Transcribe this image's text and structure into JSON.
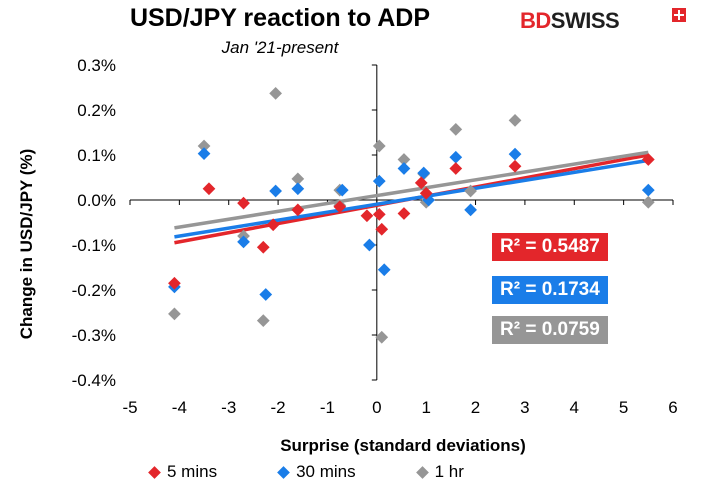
{
  "colors": {
    "s5": "#e3262b",
    "s30": "#1a7de8",
    "s1h": "#969696",
    "logo_red": "#e3262b"
  },
  "logo": {
    "bd": "BD",
    "swiss": "SWISS"
  },
  "chart_data": {
    "type": "scatter",
    "title": "USD/JPY reaction to ADP",
    "subtitle": "Jan '21-present",
    "xlabel": "Surprise (standard deviations)",
    "ylabel": "Change in USD/JPY  (%)",
    "xlim": [
      -5,
      6
    ],
    "ylim": [
      -0.4,
      0.3
    ],
    "x_ticks": [
      "-5",
      "-4",
      "-3",
      "-2",
      "-1",
      "0",
      "1",
      "2",
      "3",
      "4",
      "5",
      "6"
    ],
    "y_ticks": [
      "0.3%",
      "0.2%",
      "0.1%",
      "0.0%",
      "-0.1%",
      "-0.2%",
      "-0.3%",
      "-0.4%"
    ],
    "legend_position": "bottom",
    "series": [
      {
        "name": "5 mins",
        "color": "#e3262b",
        "points": [
          [
            -4.1,
            -0.185
          ],
          [
            -3.4,
            0.025
          ],
          [
            -2.7,
            -0.007
          ],
          [
            -2.3,
            -0.105
          ],
          [
            -2.1,
            -0.055
          ],
          [
            -1.6,
            -0.022
          ],
          [
            -0.75,
            -0.015
          ],
          [
            -0.2,
            -0.035
          ],
          [
            0.05,
            -0.032
          ],
          [
            0.1,
            -0.065
          ],
          [
            0.55,
            -0.03
          ],
          [
            0.9,
            0.038
          ],
          [
            1.0,
            0.015
          ],
          [
            1.6,
            0.07
          ],
          [
            2.8,
            0.075
          ],
          [
            5.5,
            0.09
          ]
        ],
        "trend": [
          [
            -4.1,
            -0.095
          ],
          [
            5.5,
            0.1
          ]
        ],
        "r2": "R² = 0.5487"
      },
      {
        "name": "30 mins",
        "color": "#1a7de8",
        "points": [
          [
            -4.1,
            -0.193
          ],
          [
            -3.5,
            0.103
          ],
          [
            -2.7,
            -0.093
          ],
          [
            -2.25,
            -0.21
          ],
          [
            -2.05,
            0.02
          ],
          [
            -1.6,
            0.025
          ],
          [
            -0.7,
            0.022
          ],
          [
            -0.15,
            -0.1
          ],
          [
            0.05,
            0.042
          ],
          [
            0.15,
            -0.155
          ],
          [
            0.55,
            0.07
          ],
          [
            0.95,
            0.06
          ],
          [
            1.05,
            0.0
          ],
          [
            1.6,
            0.095
          ],
          [
            1.9,
            -0.022
          ],
          [
            2.8,
            0.102
          ],
          [
            5.5,
            0.022
          ]
        ],
        "trend": [
          [
            -4.1,
            -0.082
          ],
          [
            5.5,
            0.088
          ]
        ],
        "r2": "R² = 0.1734"
      },
      {
        "name": "1 hr",
        "color": "#969696",
        "points": [
          [
            -4.1,
            -0.253
          ],
          [
            -3.5,
            0.12
          ],
          [
            -2.7,
            -0.08
          ],
          [
            -2.3,
            -0.268
          ],
          [
            -2.05,
            0.237
          ],
          [
            -1.6,
            0.047
          ],
          [
            -0.75,
            -0.012
          ],
          [
            -0.75,
            0.022
          ],
          [
            0.05,
            0.12
          ],
          [
            0.1,
            -0.305
          ],
          [
            0.55,
            0.09
          ],
          [
            0.95,
            0.058
          ],
          [
            1.0,
            -0.005
          ],
          [
            1.6,
            0.157
          ],
          [
            1.9,
            0.02
          ],
          [
            2.8,
            0.177
          ],
          [
            5.5,
            -0.005
          ]
        ],
        "trend": [
          [
            -4.1,
            -0.062
          ],
          [
            5.5,
            0.106
          ]
        ],
        "r2": "R² = 0.0759"
      }
    ]
  }
}
